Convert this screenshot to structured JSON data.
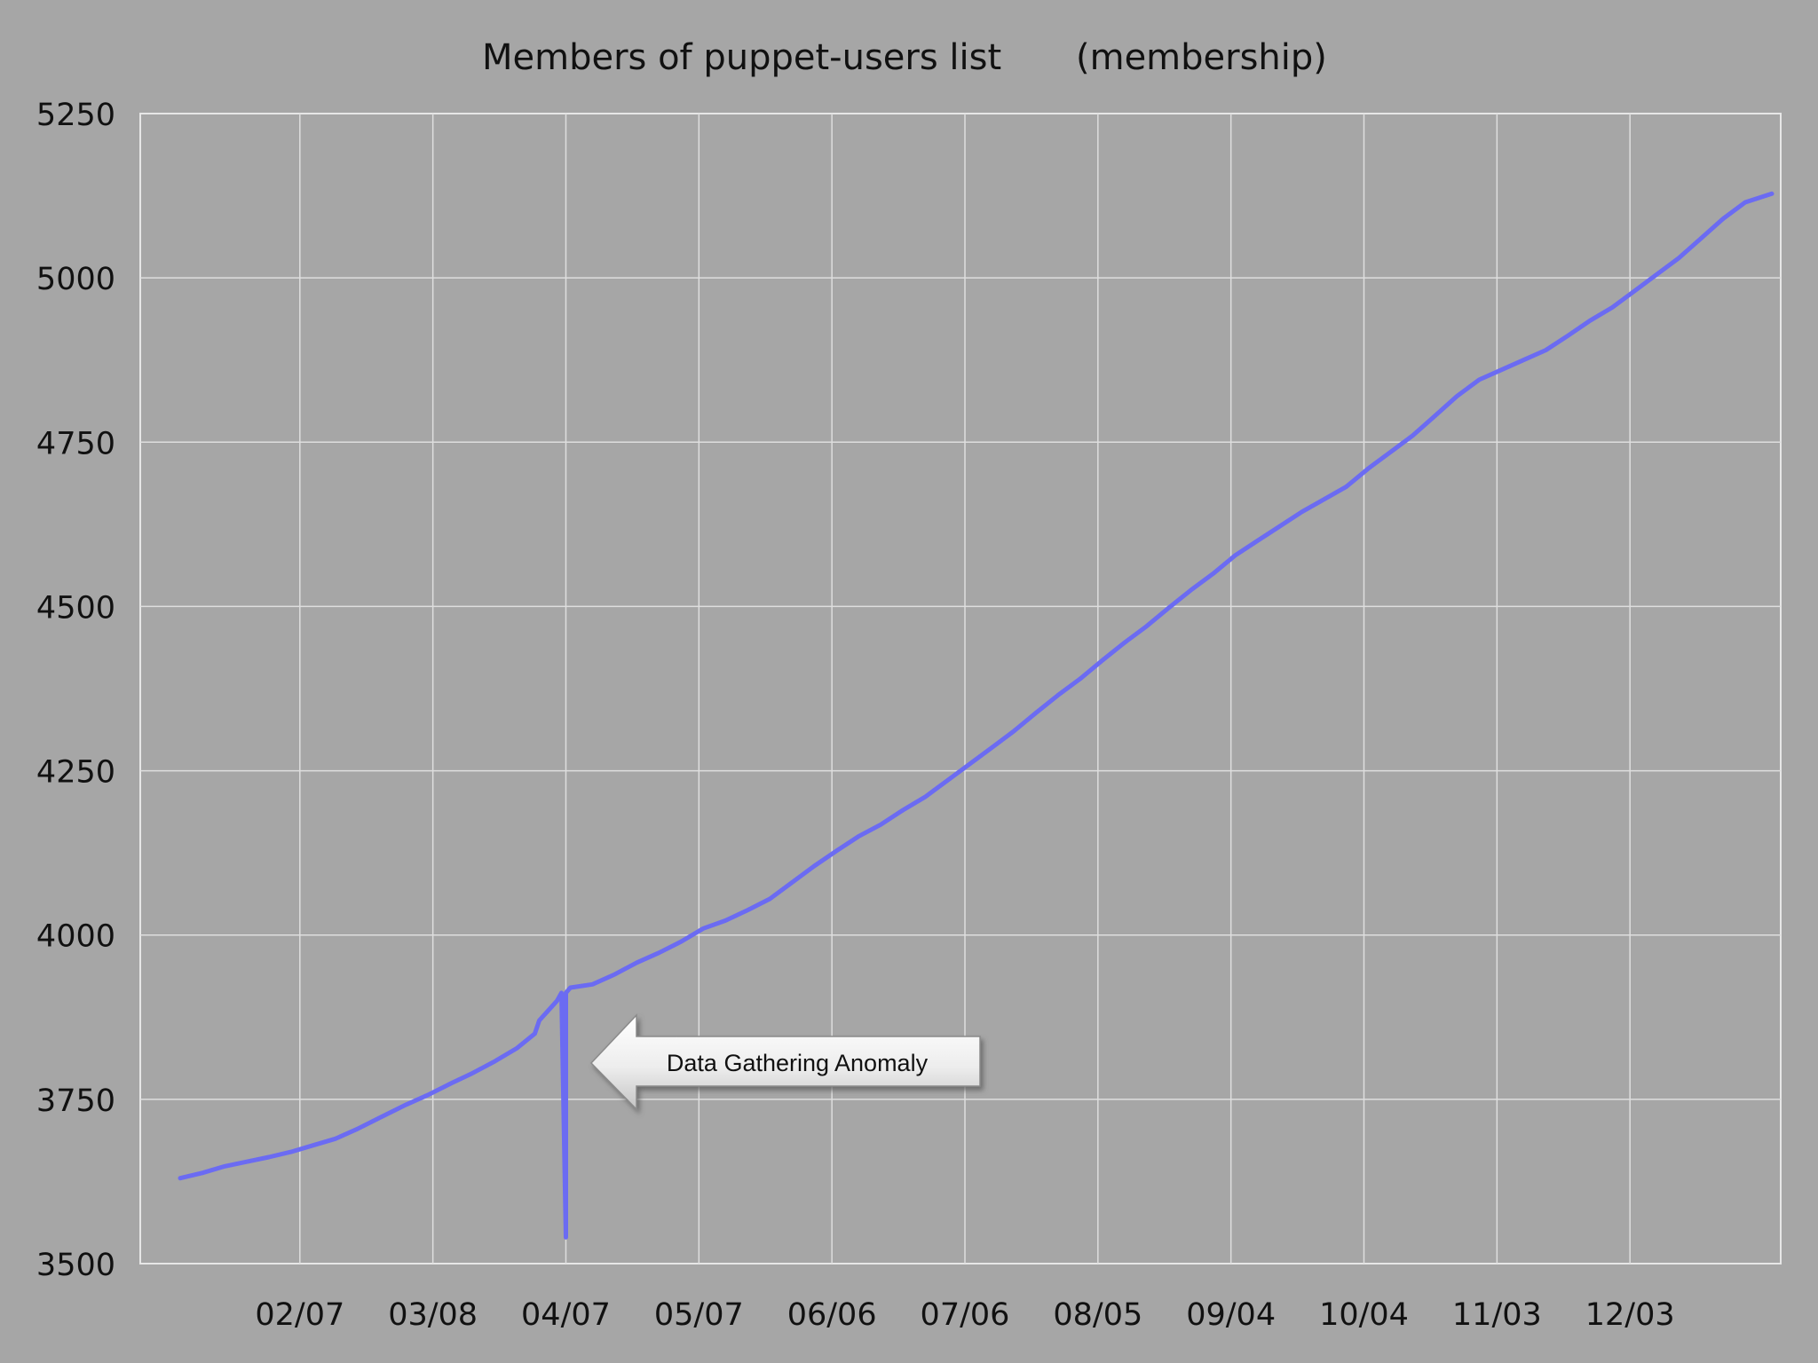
{
  "chart_data": {
    "type": "line",
    "title": "Members of puppet-users list",
    "subtitle": "(membership)",
    "xlabel": "",
    "ylabel": "",
    "x_ticks": [
      "02/07",
      "03/08",
      "04/07",
      "05/07",
      "06/06",
      "07/06",
      "08/05",
      "09/04",
      "10/04",
      "11/03",
      "12/03"
    ],
    "y_ticks": [
      3500,
      3750,
      4000,
      4250,
      4500,
      4750,
      5000,
      5250
    ],
    "ylim": [
      3500,
      5250
    ],
    "grid": true,
    "legend": "none",
    "series": [
      {
        "color": "#6b6bf2",
        "points": [
          [
            "01/11",
            3630
          ],
          [
            "01/16",
            3638
          ],
          [
            "01/21",
            3648
          ],
          [
            "01/26",
            3655
          ],
          [
            "01/31",
            3662
          ],
          [
            "02/05",
            3670
          ],
          [
            "02/10",
            3680
          ],
          [
            "02/15",
            3690
          ],
          [
            "02/20",
            3705
          ],
          [
            "02/25",
            3722
          ],
          [
            "03/02",
            3742
          ],
          [
            "03/07",
            3757
          ],
          [
            "03/12",
            3774
          ],
          [
            "03/17",
            3790
          ],
          [
            "03/22",
            3808
          ],
          [
            "03/27",
            3828
          ],
          [
            "03/31",
            3850
          ],
          [
            "04/01",
            3870
          ],
          [
            "04/03",
            3885
          ],
          [
            "04/05",
            3900
          ],
          [
            "04/06",
            3912
          ],
          [
            "04/07",
            3540
          ],
          [
            "04/07",
            3912
          ],
          [
            "04/08",
            3920
          ],
          [
            "04/13",
            3925
          ],
          [
            "04/18",
            3940
          ],
          [
            "04/23",
            3958
          ],
          [
            "04/28",
            3973
          ],
          [
            "05/03",
            3990
          ],
          [
            "05/08",
            4010
          ],
          [
            "05/13",
            4022
          ],
          [
            "05/18",
            4038
          ],
          [
            "05/23",
            4055
          ],
          [
            "05/28",
            4080
          ],
          [
            "06/02",
            4105
          ],
          [
            "06/07",
            4128
          ],
          [
            "06/12",
            4150
          ],
          [
            "06/17",
            4168
          ],
          [
            "06/22",
            4190
          ],
          [
            "06/27",
            4210
          ],
          [
            "07/02",
            4235
          ],
          [
            "07/07",
            4260
          ],
          [
            "07/12",
            4285
          ],
          [
            "07/17",
            4310
          ],
          [
            "07/22",
            4338
          ],
          [
            "07/27",
            4365
          ],
          [
            "08/01",
            4390
          ],
          [
            "08/06",
            4418
          ],
          [
            "08/11",
            4445
          ],
          [
            "08/16",
            4470
          ],
          [
            "08/21",
            4498
          ],
          [
            "08/26",
            4525
          ],
          [
            "08/31",
            4550
          ],
          [
            "09/05",
            4578
          ],
          [
            "09/10",
            4600
          ],
          [
            "09/15",
            4622
          ],
          [
            "09/20",
            4644
          ],
          [
            "09/25",
            4663
          ],
          [
            "09/30",
            4682
          ],
          [
            "10/05",
            4710
          ],
          [
            "10/10",
            4735
          ],
          [
            "10/15",
            4760
          ],
          [
            "10/20",
            4790
          ],
          [
            "10/25",
            4820
          ],
          [
            "10/30",
            4845
          ],
          [
            "11/04",
            4860
          ],
          [
            "11/09",
            4875
          ],
          [
            "11/14",
            4890
          ],
          [
            "11/19",
            4912
          ],
          [
            "11/24",
            4935
          ],
          [
            "11/29",
            4955
          ],
          [
            "12/04",
            4980
          ],
          [
            "12/09",
            5005
          ],
          [
            "12/14",
            5030
          ],
          [
            "12/19",
            5060
          ],
          [
            "12/24",
            5090
          ],
          [
            "12/29",
            5115
          ],
          [
            "01/04",
            5128
          ]
        ]
      }
    ],
    "annotations": [
      {
        "text": "Data Gathering Anomaly"
      }
    ]
  }
}
